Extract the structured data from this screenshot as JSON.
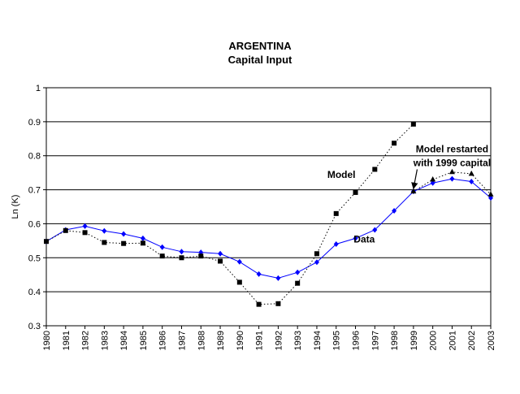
{
  "chart_data": {
    "type": "line",
    "title": "ARGENTINA",
    "subtitle": "Capital Input",
    "xlabel": "",
    "ylabel": "Ln (K)",
    "ylim": [
      0.3,
      1.0
    ],
    "yticks": [
      "0.3",
      "0.4",
      "0.5",
      "0.6",
      "0.7",
      "0.8",
      "0.9",
      "1"
    ],
    "grid": true,
    "categories": [
      "1980",
      "1981",
      "1982",
      "1983",
      "1984",
      "1985",
      "1986",
      "1987",
      "1988",
      "1989",
      "1990",
      "1991",
      "1992",
      "1993",
      "1994",
      "1995",
      "1996",
      "1997",
      "1998",
      "1999",
      "2000",
      "2001",
      "2002",
      "2003"
    ],
    "series": [
      {
        "name": "Data",
        "color": "#0000ff",
        "style": "solid",
        "marker": "diamond",
        "values": [
          0.548,
          0.582,
          0.593,
          0.579,
          0.57,
          0.557,
          0.531,
          0.518,
          0.516,
          0.512,
          0.488,
          0.452,
          0.44,
          0.457,
          0.487,
          0.54,
          0.557,
          0.582,
          0.638,
          0.695,
          0.72,
          0.732,
          0.724,
          0.676
        ]
      },
      {
        "name": "Model",
        "color": "#000000",
        "style": "dotted",
        "marker": "square",
        "values": [
          0.548,
          0.58,
          0.574,
          0.545,
          0.542,
          0.543,
          0.505,
          0.5,
          0.505,
          0.49,
          0.428,
          0.363,
          0.365,
          0.425,
          0.512,
          0.63,
          0.692,
          0.76,
          0.837,
          0.893,
          null,
          null,
          null,
          null
        ]
      },
      {
        "name": "Model restarted with 1999 capital",
        "color": "#000000",
        "style": "dotted",
        "marker": "triangle",
        "values": [
          null,
          null,
          null,
          null,
          null,
          null,
          null,
          null,
          null,
          null,
          null,
          null,
          null,
          null,
          null,
          null,
          null,
          null,
          null,
          0.695,
          0.73,
          0.752,
          0.747,
          0.686
        ]
      }
    ],
    "annotations": [
      {
        "text": "Model",
        "x": "1996",
        "y": 0.735
      },
      {
        "text": "Data",
        "x": "1997",
        "y": 0.545
      },
      {
        "lines": [
          "Model restarted",
          "with 1999 capital"
        ],
        "x": "2001",
        "y": 0.81,
        "arrow_to": {
          "x": "1999",
          "y": 0.703
        }
      }
    ]
  }
}
